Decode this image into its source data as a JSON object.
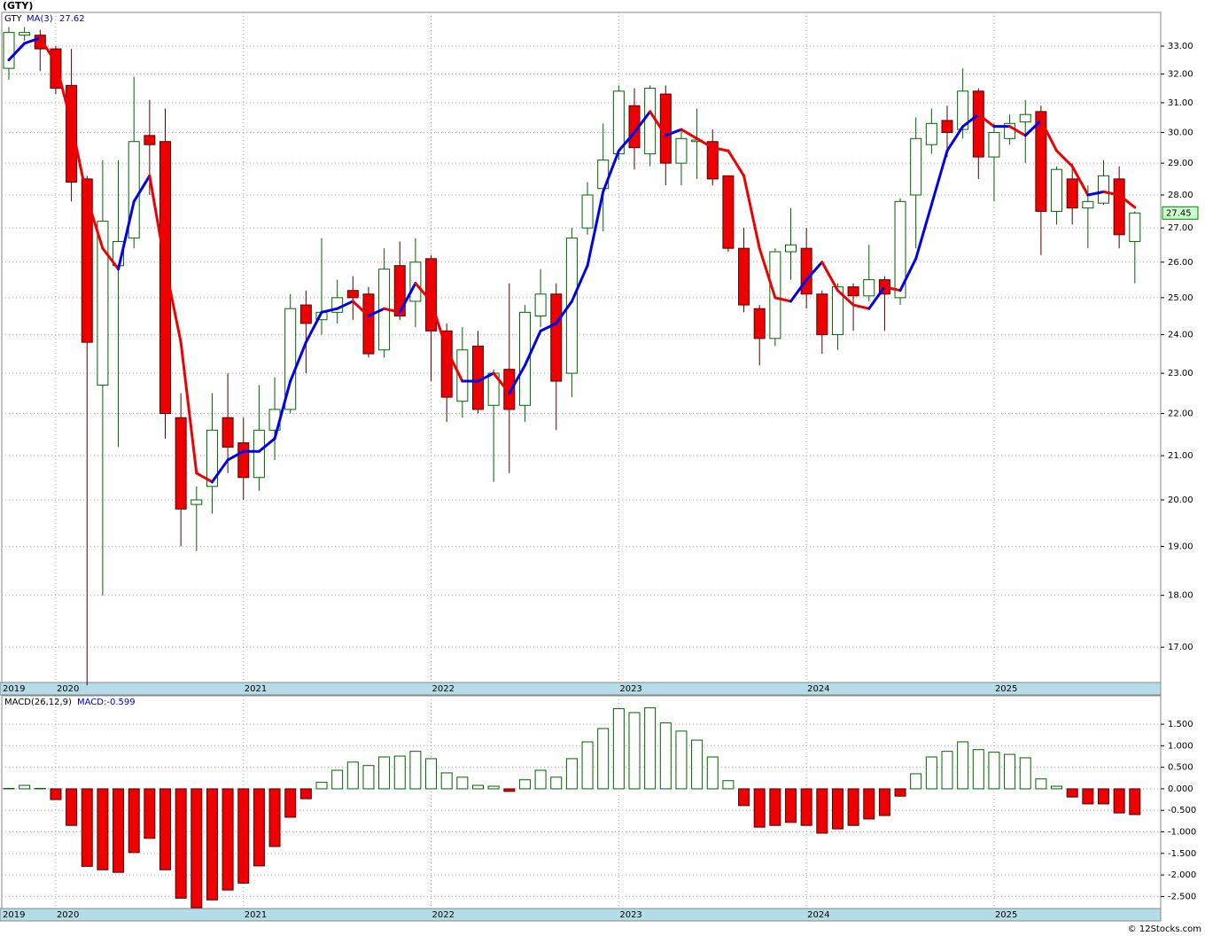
{
  "chart_data": [
    {
      "type": "candlestick",
      "title": "(GTY)",
      "ticker": "GTY",
      "log_scale": true,
      "grid": true,
      "up_color": "#006400",
      "down_color": "#ee0000",
      "categories": [
        "2019",
        null,
        null,
        "2020",
        null,
        null,
        null,
        null,
        null,
        null,
        null,
        null,
        null,
        null,
        null,
        "2021",
        null,
        null,
        null,
        null,
        null,
        null,
        null,
        null,
        null,
        null,
        null,
        "2022",
        null,
        null,
        null,
        null,
        null,
        null,
        null,
        null,
        null,
        null,
        null,
        "2023",
        null,
        null,
        null,
        null,
        null,
        null,
        null,
        null,
        null,
        null,
        null,
        "2024",
        null,
        null,
        null,
        null,
        null,
        null,
        null,
        null,
        null,
        null,
        null,
        "2025",
        null,
        null,
        null,
        null,
        null,
        null,
        null,
        null,
        null
      ],
      "open": [
        32.2,
        33.4,
        33.4,
        32.9,
        31.6,
        28.5,
        22.7,
        25.9,
        26.7,
        29.9,
        29.7,
        21.9,
        19.9,
        20.3,
        21.9,
        21.3,
        20.5,
        21.6,
        22.1,
        24.8,
        24.4,
        24.6,
        25.2,
        25.1,
        23.6,
        25.9,
        24.9,
        26.1,
        24.1,
        22.3,
        23.7,
        22.2,
        23.1,
        22.2,
        24.5,
        25.1,
        23.0,
        27.0,
        28.2,
        29.3,
        30.9,
        29.3,
        31.3,
        29.0,
        29.7,
        29.7,
        28.6,
        26.4,
        24.7,
        23.9,
        26.3,
        26.4,
        25.1,
        24.0,
        25.3,
        25.05,
        25.5,
        25.0,
        28.0,
        29.6,
        30.4,
        30.1,
        31.4,
        29.2,
        29.8,
        30.35,
        30.7,
        27.5,
        28.5,
        27.6,
        27.75,
        28.5,
        26.6
      ],
      "high": [
        33.7,
        33.7,
        33.6,
        33.0,
        32.9,
        28.6,
        29.1,
        29.1,
        31.9,
        31.1,
        30.8,
        22.5,
        20.3,
        22.5,
        23.0,
        21.9,
        22.7,
        22.9,
        25.1,
        25.2,
        26.7,
        25.5,
        25.6,
        25.3,
        26.4,
        26.6,
        26.7,
        26.2,
        24.3,
        24.2,
        24.1,
        23.1,
        25.4,
        24.8,
        25.8,
        25.4,
        27.0,
        28.4,
        30.3,
        31.6,
        31.5,
        31.6,
        31.6,
        30.1,
        30.8,
        30.1,
        28.6,
        27.0,
        24.8,
        26.4,
        27.6,
        27.0,
        25.2,
        25.4,
        25.4,
        26.5,
        25.6,
        27.9,
        30.5,
        30.8,
        30.9,
        32.2,
        31.5,
        30.3,
        30.6,
        31.1,
        30.9,
        28.9,
        29.0,
        28.3,
        29.1,
        28.9,
        27.5
      ],
      "low": [
        31.8,
        33.2,
        32.1,
        31.3,
        27.8,
        16.3,
        18.0,
        21.2,
        26.4,
        28.0,
        21.4,
        19.0,
        18.9,
        19.7,
        20.6,
        20.0,
        20.2,
        20.9,
        22.0,
        23.0,
        24.0,
        24.3,
        24.4,
        23.4,
        23.4,
        24.4,
        24.2,
        22.8,
        21.8,
        21.9,
        22.0,
        20.4,
        20.6,
        21.8,
        24.2,
        21.6,
        22.4,
        26.8,
        26.9,
        29.1,
        28.8,
        28.9,
        28.3,
        28.3,
        28.5,
        28.3,
        26.3,
        24.6,
        23.2,
        23.7,
        25.5,
        24.7,
        23.5,
        23.6,
        24.1,
        24.9,
        24.1,
        24.8,
        26.4,
        29.3,
        29.2,
        29.8,
        28.5,
        27.8,
        29.6,
        29.0,
        26.2,
        27.1,
        27.1,
        26.4,
        27.7,
        26.4,
        25.4
      ],
      "close": [
        33.5,
        33.5,
        32.9,
        31.5,
        28.4,
        23.8,
        27.2,
        26.6,
        29.7,
        29.6,
        22.0,
        19.8,
        20.0,
        21.6,
        21.2,
        20.5,
        21.6,
        22.1,
        24.7,
        24.3,
        24.6,
        25.0,
        25.0,
        23.5,
        25.8,
        24.5,
        26.0,
        24.1,
        22.4,
        23.6,
        22.1,
        23.0,
        22.1,
        24.6,
        25.1,
        22.8,
        26.7,
        28.0,
        29.1,
        31.4,
        29.5,
        31.5,
        29.0,
        29.8,
        29.75,
        28.5,
        26.4,
        24.8,
        23.9,
        26.3,
        26.5,
        25.1,
        24.0,
        25.3,
        25.05,
        25.5,
        25.1,
        27.8,
        29.8,
        30.3,
        30.0,
        31.4,
        29.2,
        30.0,
        30.3,
        30.6,
        27.5,
        28.8,
        27.6,
        27.8,
        28.6,
        26.8,
        27.45
      ],
      "ma": {
        "name": "MA(3)",
        "up_color": "#0000ee",
        "down_color": "#ee0000",
        "values": [
          32.5,
          33.1,
          33.3,
          32.4,
          30.3,
          27.9,
          26.4,
          25.8,
          27.8,
          28.6,
          25.9,
          23.8,
          20.6,
          20.4,
          20.9,
          21.1,
          21.1,
          21.4,
          22.8,
          23.8,
          24.6,
          24.7,
          24.9,
          24.5,
          24.7,
          24.6,
          25.4,
          24.9,
          23.6,
          22.8,
          22.8,
          23.0,
          22.5,
          23.2,
          24.1,
          24.3,
          24.9,
          25.9,
          28.1,
          29.4,
          30.0,
          30.7,
          29.9,
          30.1,
          29.8,
          29.5,
          29.4,
          28.6,
          26.4,
          25.0,
          24.9,
          25.5,
          26.0,
          25.2,
          24.8,
          24.7,
          25.3,
          25.2,
          26.1,
          27.7,
          29.4,
          30.2,
          30.6,
          30.2,
          30.2,
          29.9,
          30.4,
          29.4,
          28.9,
          28.0,
          28.1,
          28.0,
          27.62
        ]
      },
      "ylim": [
        16.35,
        34.25
      ],
      "yticks": [
        {
          "value": 17,
          "label": "17.00"
        },
        {
          "value": 18,
          "label": "18.00"
        },
        {
          "value": 19,
          "label": "19.00"
        },
        {
          "value": 20,
          "label": "20.00"
        },
        {
          "value": 21,
          "label": "21.00"
        },
        {
          "value": 22,
          "label": "22.00"
        },
        {
          "value": 23,
          "label": "23.00"
        },
        {
          "value": 24,
          "label": "24.00"
        },
        {
          "value": 25,
          "label": "25.00"
        },
        {
          "value": 26,
          "label": "26.00"
        },
        {
          "value": 27,
          "label": "27.00"
        },
        {
          "value": 28,
          "label": "28.00"
        },
        {
          "value": 29,
          "label": "29.00"
        },
        {
          "value": 30,
          "label": "30.00"
        },
        {
          "value": 31,
          "label": "31.00"
        },
        {
          "value": 32,
          "label": "32.00"
        },
        {
          "value": 33,
          "label": "33.00"
        }
      ]
    },
    {
      "type": "bar",
      "title": "MACD(26,12,9)",
      "value_name": "MACD:",
      "grid": true,
      "up_color": "#006400",
      "down_color": "#ee0000",
      "categories": [
        "2019",
        null,
        null,
        "2020",
        null,
        null,
        null,
        null,
        null,
        null,
        null,
        null,
        null,
        null,
        null,
        "2021",
        null,
        null,
        null,
        null,
        null,
        null,
        null,
        null,
        null,
        null,
        null,
        "2022",
        null,
        null,
        null,
        null,
        null,
        null,
        null,
        null,
        null,
        null,
        null,
        "2023",
        null,
        null,
        null,
        null,
        null,
        null,
        null,
        null,
        null,
        null,
        null,
        "2024",
        null,
        null,
        null,
        null,
        null,
        null,
        null,
        null,
        null,
        null,
        null,
        "2025",
        null,
        null,
        null,
        null,
        null,
        null,
        null,
        null,
        null
      ],
      "values": [
        0.01,
        0.08,
        0.01,
        -0.25,
        -0.85,
        -1.8,
        -1.88,
        -1.94,
        -1.48,
        -1.15,
        -1.88,
        -2.54,
        -2.76,
        -2.58,
        -2.35,
        -2.19,
        -1.79,
        -1.34,
        -0.66,
        -0.23,
        0.15,
        0.43,
        0.62,
        0.54,
        0.74,
        0.76,
        0.87,
        0.7,
        0.37,
        0.27,
        0.08,
        0.06,
        -0.06,
        0.21,
        0.43,
        0.27,
        0.7,
        1.09,
        1.4,
        1.86,
        1.77,
        1.88,
        1.53,
        1.34,
        1.13,
        0.74,
        0.19,
        -0.39,
        -0.89,
        -0.85,
        -0.78,
        -0.85,
        -1.03,
        -0.93,
        -0.85,
        -0.7,
        -0.62,
        -0.17,
        0.35,
        0.74,
        0.87,
        1.09,
        0.91,
        0.85,
        0.8,
        0.72,
        0.23,
        0.06,
        -0.19,
        -0.35,
        -0.35,
        -0.56,
        -0.599
      ],
      "ylim": [
        -2.78,
        2.16
      ],
      "yticks": [
        {
          "value": 1.5,
          "label": "1.500"
        },
        {
          "value": 1,
          "label": "1.000"
        },
        {
          "value": 0.5,
          "label": "0.500"
        },
        {
          "value": 0,
          "label": "0.000"
        },
        {
          "value": -0.5,
          "label": "-0.500"
        },
        {
          "value": -1,
          "label": "-1.000"
        },
        {
          "value": -1.5,
          "label": "-1.500"
        },
        {
          "value": -2,
          "label": "-2.000"
        },
        {
          "value": -2.5,
          "label": "-2.500"
        }
      ]
    }
  ],
  "footer": "© 12Stocks.com"
}
